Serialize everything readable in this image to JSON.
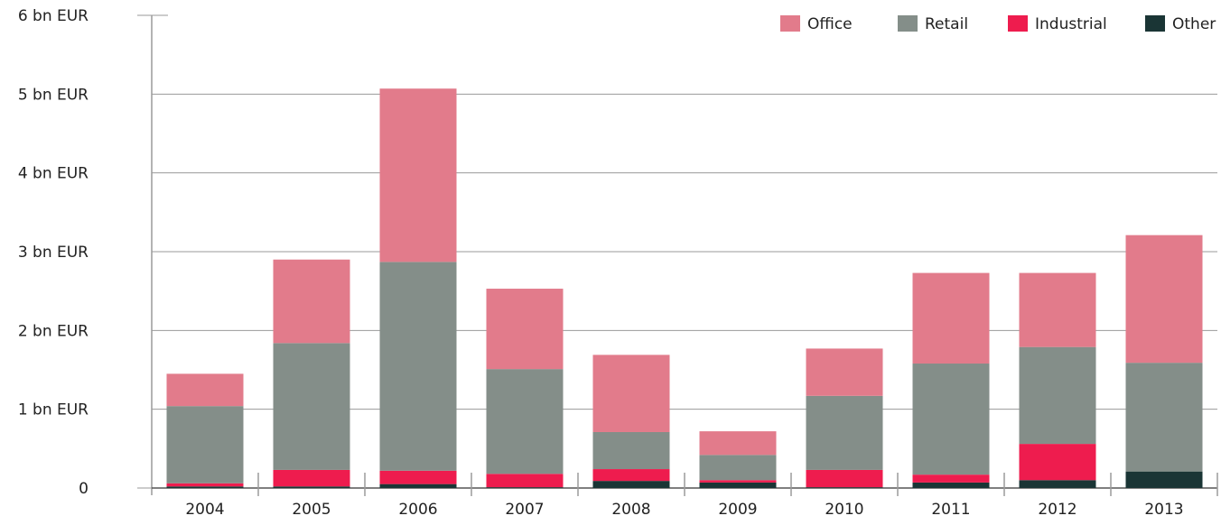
{
  "chart_data": {
    "type": "stacked_bar",
    "categories": [
      "2004",
      "2005",
      "2006",
      "2007",
      "2008",
      "2009",
      "2010",
      "2011",
      "2012",
      "2013"
    ],
    "series": [
      {
        "name": "Other",
        "color": "#1a3535",
        "values": [
          0.02,
          0.02,
          0.05,
          0.01,
          0.09,
          0.07,
          0.01,
          0.07,
          0.1,
          0.21
        ]
      },
      {
        "name": "Industrial",
        "color": "#ee1c4e",
        "values": [
          0.04,
          0.21,
          0.17,
          0.17,
          0.15,
          0.03,
          0.22,
          0.1,
          0.46,
          0.0
        ]
      },
      {
        "name": "Retail",
        "color": "#848e89",
        "values": [
          0.98,
          1.61,
          2.65,
          1.33,
          0.47,
          0.32,
          0.94,
          1.41,
          1.23,
          1.38
        ]
      },
      {
        "name": "Office",
        "color": "#e27b8b",
        "values": [
          0.41,
          1.06,
          2.2,
          1.02,
          0.98,
          0.3,
          0.6,
          1.15,
          0.94,
          1.62
        ]
      }
    ],
    "ylim": [
      0,
      6
    ],
    "yticks": [
      0,
      {
        "value": 1,
        "label": "1 bn EUR"
      },
      {
        "value": 2,
        "label": "2 bn EUR"
      },
      {
        "value": 3,
        "label": "3 bn EUR"
      },
      {
        "value": 4,
        "label": "4 bn EUR"
      },
      {
        "value": 5,
        "label": "5 bn EUR"
      },
      {
        "value": 6,
        "label": "6 bn EUR"
      }
    ],
    "grid": true,
    "legend": "top-right"
  }
}
